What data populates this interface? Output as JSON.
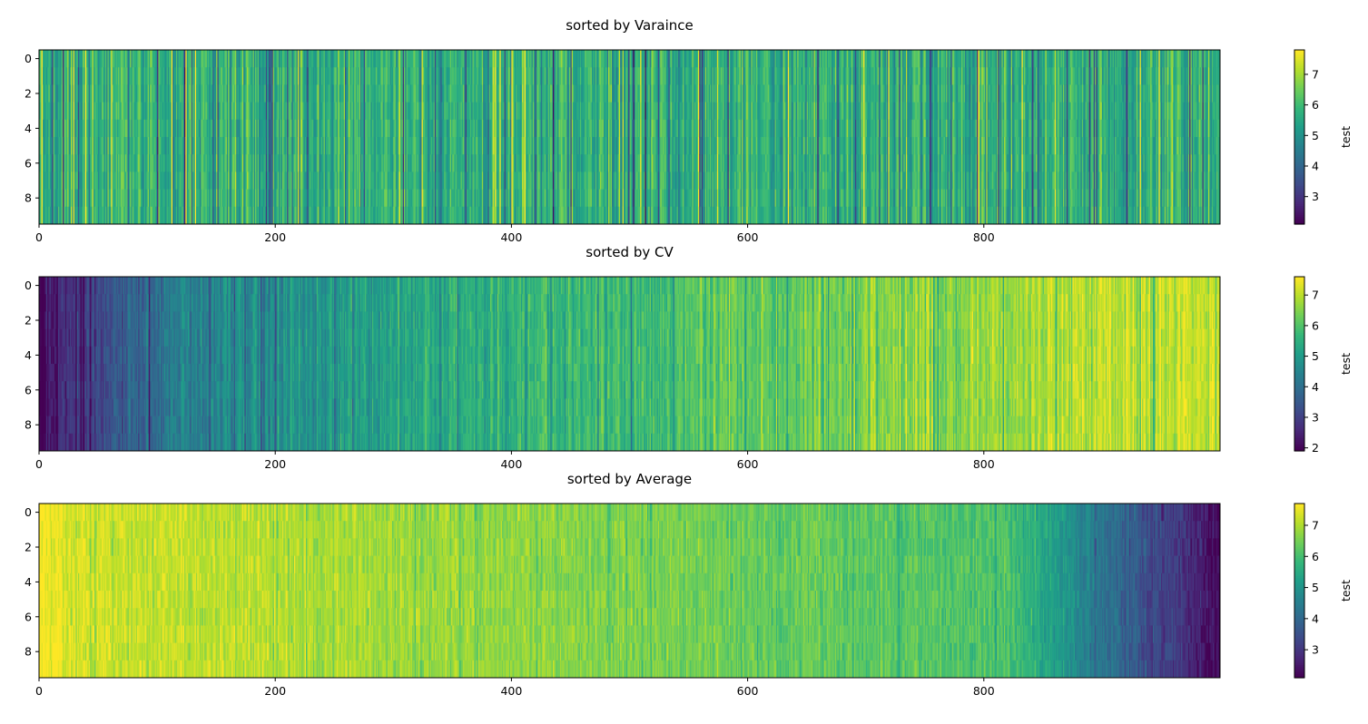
{
  "chart_data": [
    {
      "type": "heatmap",
      "title": "sorted by Varaince",
      "n_rows": 10,
      "n_cols": 1000,
      "xlim": [
        0,
        1000
      ],
      "ylim": [
        9.5,
        -0.5
      ],
      "x_ticks": [
        0,
        200,
        400,
        600,
        800
      ],
      "y_ticks": [
        0,
        2,
        4,
        6,
        8
      ],
      "colorbar": {
        "label": "test",
        "range": [
          2.1,
          7.8
        ],
        "ticks": [
          3,
          4,
          5,
          6,
          7
        ],
        "colormap": "viridis"
      },
      "pattern": "mixed",
      "value_range": [
        2.1,
        7.8
      ]
    },
    {
      "type": "heatmap",
      "title": "sorted by CV",
      "n_rows": 10,
      "n_cols": 1000,
      "xlim": [
        0,
        1000
      ],
      "ylim": [
        9.5,
        -0.5
      ],
      "x_ticks": [
        0,
        200,
        400,
        600,
        800
      ],
      "y_ticks": [
        0,
        2,
        4,
        6,
        8
      ],
      "colorbar": {
        "label": "test",
        "range": [
          1.9,
          7.6
        ],
        "ticks": [
          2,
          3,
          4,
          5,
          6,
          7
        ],
        "colormap": "viridis"
      },
      "pattern": "increasing",
      "value_range": [
        1.9,
        7.6
      ]
    },
    {
      "type": "heatmap",
      "title": "sorted by Average",
      "n_rows": 10,
      "n_cols": 1000,
      "xlim": [
        0,
        1000
      ],
      "ylim": [
        9.5,
        -0.5
      ],
      "x_ticks": [
        0,
        200,
        400,
        600,
        800
      ],
      "y_ticks": [
        0,
        2,
        4,
        6,
        8
      ],
      "colorbar": {
        "label": "test",
        "range": [
          2.1,
          7.7
        ],
        "ticks": [
          3,
          4,
          5,
          6,
          7
        ],
        "colormap": "viridis"
      },
      "pattern": "decreasing",
      "value_range": [
        2.1,
        7.7
      ]
    }
  ]
}
